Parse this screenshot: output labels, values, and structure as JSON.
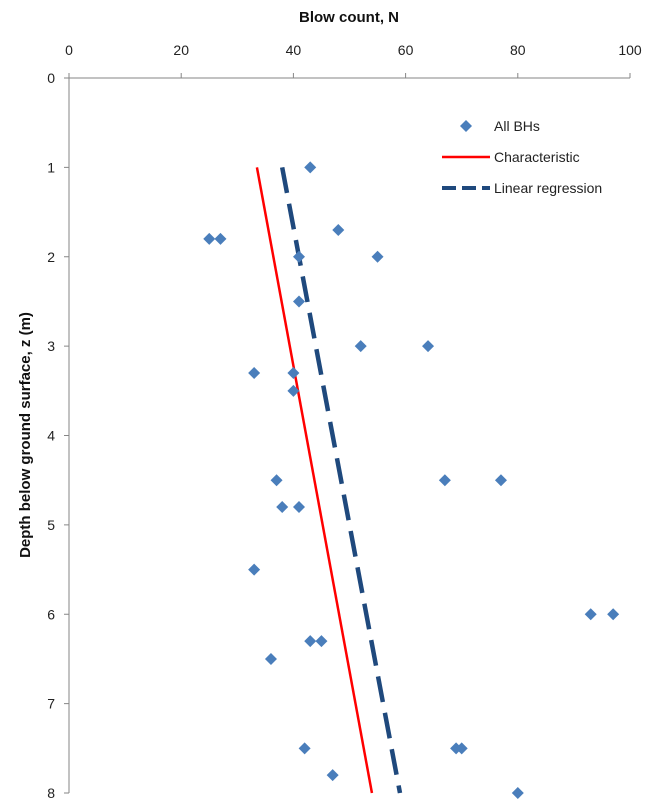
{
  "chart_data": {
    "type": "scatter",
    "xlabel": "Blow count, N",
    "ylabel": "Depth below ground surface, z (m)",
    "xlim": [
      0,
      100
    ],
    "ylim": [
      0,
      8
    ],
    "x_axis_position": "top",
    "y_axis_inverted": true,
    "x_ticks": [
      "0",
      "20",
      "40",
      "60",
      "80",
      "100"
    ],
    "y_ticks": [
      "0",
      "1",
      "2",
      "3",
      "4",
      "5",
      "6",
      "7",
      "8"
    ],
    "grid": false,
    "legend_position": "top-right",
    "series": [
      {
        "name": "All BHs",
        "kind": "scatter",
        "marker": "diamond",
        "color": "#4a7ebb",
        "points": [
          [
            43,
            1.0
          ],
          [
            48,
            1.7
          ],
          [
            25,
            1.8
          ],
          [
            27,
            1.8
          ],
          [
            41,
            2.0
          ],
          [
            55,
            2.0
          ],
          [
            41,
            2.5
          ],
          [
            52,
            3.0
          ],
          [
            64,
            3.0
          ],
          [
            33,
            3.3
          ],
          [
            40,
            3.3
          ],
          [
            40,
            3.5
          ],
          [
            37,
            4.5
          ],
          [
            67,
            4.5
          ],
          [
            77,
            4.5
          ],
          [
            38,
            4.8
          ],
          [
            41,
            4.8
          ],
          [
            33,
            5.5
          ],
          [
            93,
            6.0
          ],
          [
            97,
            6.0
          ],
          [
            43,
            6.3
          ],
          [
            45,
            6.3
          ],
          [
            36,
            6.5
          ],
          [
            42,
            7.5
          ],
          [
            69,
            7.5
          ],
          [
            70,
            7.5
          ],
          [
            47,
            7.8
          ],
          [
            80,
            8.0
          ]
        ]
      },
      {
        "name": "Characteristic",
        "kind": "line",
        "style": "solid",
        "color": "#ff0000",
        "points": [
          [
            33.5,
            1.0
          ],
          [
            54,
            8.0
          ]
        ]
      },
      {
        "name": "Linear regression",
        "kind": "line",
        "style": "dashed",
        "color": "#1f497d",
        "points": [
          [
            38,
            1.0
          ],
          [
            59,
            8.0
          ]
        ]
      }
    ]
  }
}
